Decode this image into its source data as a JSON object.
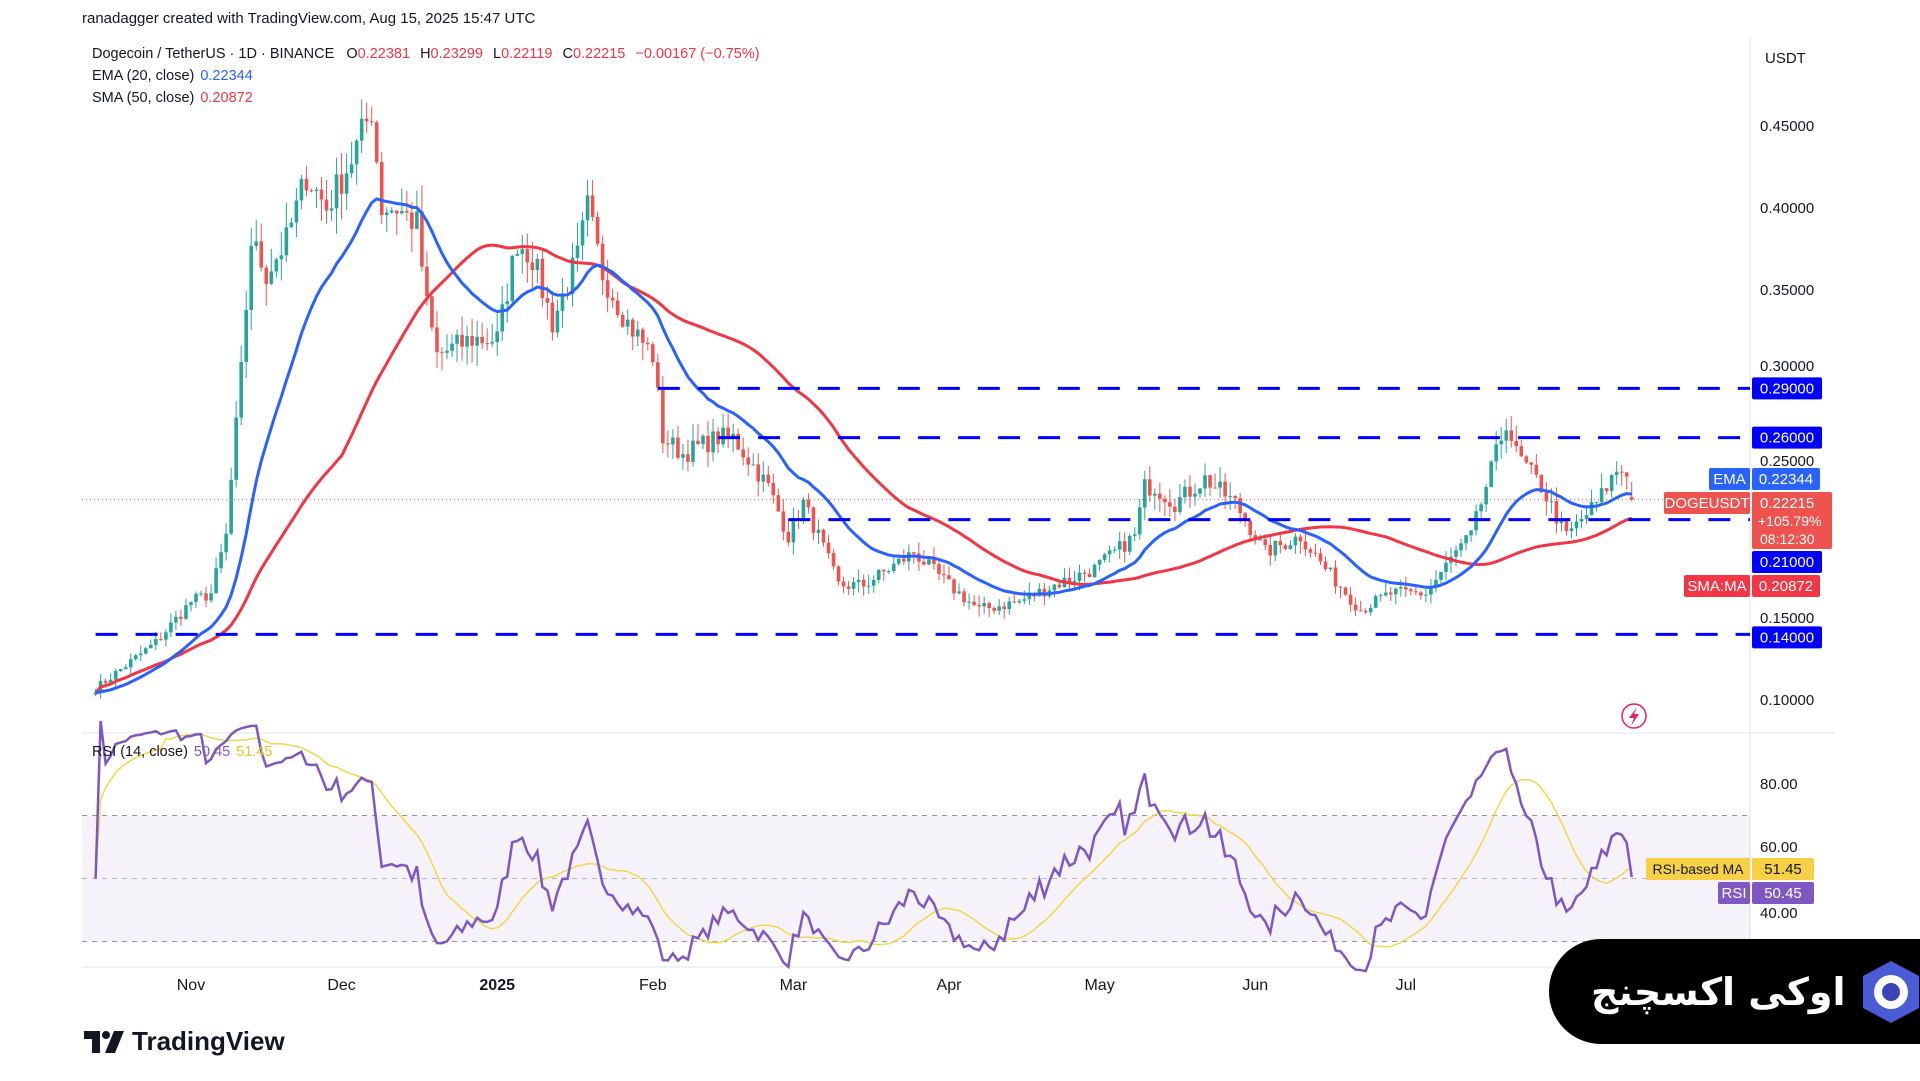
{
  "credit": "ranadagger created with TradingView.com, Aug 15, 2025 15:47 UTC",
  "legend": {
    "symbol": "Dogecoin / TetherUS · 1D · BINANCE",
    "o_label": "O",
    "o": "0.22381",
    "h_label": "H",
    "h": "0.23299",
    "l_label": "L",
    "l": "0.22119",
    "c_label": "C",
    "c": "0.22215",
    "change": "−0.00167 (−0.75%)",
    "ema_label": "EMA (20, close)",
    "ema": "0.22344",
    "sma_label": "SMA (50, close)",
    "sma": "0.20872",
    "rsi_label": "RSI (14, close)",
    "rsi": "50.45",
    "rsi_ma": "51.45"
  },
  "colors": {
    "up": "#26a69a",
    "down": "#ef5350",
    "ema": "#2962ff",
    "sma": "#f23645",
    "level": "#0000ff",
    "rsi": "#7e57c2",
    "rsi_ma": "#f7e25a"
  },
  "price_axis": {
    "unit": "USDT",
    "ticks": [
      "0.45000",
      "0.40000",
      "0.35000",
      "0.30000",
      "0.25000",
      "0.15000",
      "0.10000"
    ]
  },
  "rsi_axis": {
    "ticks": [
      "80.00",
      "60.00",
      "40.00"
    ]
  },
  "right_labels": {
    "ema_tag": "EMA",
    "ema": "0.22344",
    "sym_tag": "DOGEUSDT",
    "price": "0.22215",
    "pct": "+105.79%",
    "countdown": "08:12:30",
    "sma_tag": "SMA:MA",
    "sma": "0.20872",
    "rsi_ma_tag": "RSI-based MA",
    "rsi_ma": "51.45",
    "rsi_tag": "RSI",
    "rsi": "50.45"
  },
  "x_axis": {
    "labels": [
      {
        "text": "Nov",
        "date": "2024-11-01"
      },
      {
        "text": "Dec",
        "date": "2024-12-01"
      },
      {
        "text": "2025",
        "date": "2025-01-01"
      },
      {
        "text": "Feb",
        "date": "2025-02-01"
      },
      {
        "text": "Mar",
        "date": "2025-03-01"
      },
      {
        "text": "Apr",
        "date": "2025-04-01"
      },
      {
        "text": "May",
        "date": "2025-05-01"
      },
      {
        "text": "Jun",
        "date": "2025-06-01"
      },
      {
        "text": "Jul",
        "date": "2025-07-01"
      }
    ]
  },
  "brand": "TradingView",
  "watermark": "اوکی اکسچنج",
  "chart_data": {
    "type": "candlestick",
    "title": "Dogecoin / TetherUS · 1D · BINANCE",
    "ylabel": "USDT",
    "ylim": [
      0.08,
      0.49
    ],
    "levels": [
      {
        "value": 0.29,
        "label": "0.29000",
        "from": "2025-02-02"
      },
      {
        "value": 0.26,
        "label": "0.26000",
        "from": "2025-02-14"
      },
      {
        "value": 0.21,
        "label": "0.21000",
        "from": "2025-02-28"
      },
      {
        "value": 0.14,
        "label": "0.14000",
        "from": "2024-10-13"
      }
    ],
    "indicators": [
      "EMA 20",
      "SMA 50",
      "RSI 14",
      "RSI-based MA 14"
    ],
    "close_path": [
      [
        "2024-10-13",
        0.107
      ],
      [
        "2024-10-25",
        0.135
      ],
      [
        "2024-11-01",
        0.16
      ],
      [
        "2024-11-05",
        0.165
      ],
      [
        "2024-11-08",
        0.2
      ],
      [
        "2024-11-11",
        0.3
      ],
      [
        "2024-11-13",
        0.38
      ],
      [
        "2024-11-16",
        0.36
      ],
      [
        "2024-11-20",
        0.38
      ],
      [
        "2024-11-24",
        0.42
      ],
      [
        "2024-11-28",
        0.4
      ],
      [
        "2024-12-03",
        0.43
      ],
      [
        "2024-12-07",
        0.46
      ],
      [
        "2024-12-09",
        0.4
      ],
      [
        "2024-12-12",
        0.4
      ],
      [
        "2024-12-16",
        0.39
      ],
      [
        "2024-12-18",
        0.34
      ],
      [
        "2024-12-20",
        0.31
      ],
      [
        "2024-12-27",
        0.32
      ],
      [
        "2025-01-01",
        0.32
      ],
      [
        "2025-01-05",
        0.38
      ],
      [
        "2025-01-08",
        0.37
      ],
      [
        "2025-01-12",
        0.33
      ],
      [
        "2025-01-17",
        0.37
      ],
      [
        "2025-01-19",
        0.4
      ],
      [
        "2025-01-22",
        0.36
      ],
      [
        "2025-01-27",
        0.33
      ],
      [
        "2025-02-01",
        0.31
      ],
      [
        "2025-02-03",
        0.26
      ],
      [
        "2025-02-07",
        0.25
      ],
      [
        "2025-02-14",
        0.26
      ],
      [
        "2025-02-17",
        0.26
      ],
      [
        "2025-02-24",
        0.23
      ],
      [
        "2025-02-28",
        0.2
      ],
      [
        "2025-03-03",
        0.22
      ],
      [
        "2025-03-06",
        0.2
      ],
      [
        "2025-03-10",
        0.17
      ],
      [
        "2025-03-15",
        0.17
      ],
      [
        "2025-03-25",
        0.19
      ],
      [
        "2025-04-01",
        0.17
      ],
      [
        "2025-04-07",
        0.155
      ],
      [
        "2025-04-15",
        0.16
      ],
      [
        "2025-04-22",
        0.17
      ],
      [
        "2025-04-30",
        0.18
      ],
      [
        "2025-05-08",
        0.2
      ],
      [
        "2025-05-10",
        0.23
      ],
      [
        "2025-05-12",
        0.23
      ],
      [
        "2025-05-16",
        0.22
      ],
      [
        "2025-05-22",
        0.235
      ],
      [
        "2025-05-28",
        0.22
      ],
      [
        "2025-06-03",
        0.19
      ],
      [
        "2025-06-10",
        0.2
      ],
      [
        "2025-06-15",
        0.18
      ],
      [
        "2025-06-22",
        0.155
      ],
      [
        "2025-06-28",
        0.165
      ],
      [
        "2025-07-05",
        0.165
      ],
      [
        "2025-07-11",
        0.19
      ],
      [
        "2025-07-14",
        0.2
      ],
      [
        "2025-07-18",
        0.24
      ],
      [
        "2025-07-21",
        0.27
      ],
      [
        "2025-07-23",
        0.25
      ],
      [
        "2025-07-28",
        0.23
      ],
      [
        "2025-08-02",
        0.2
      ],
      [
        "2025-08-08",
        0.22
      ],
      [
        "2025-08-12",
        0.24
      ],
      [
        "2025-08-14",
        0.24
      ],
      [
        "2025-08-15",
        0.22215
      ]
    ]
  }
}
